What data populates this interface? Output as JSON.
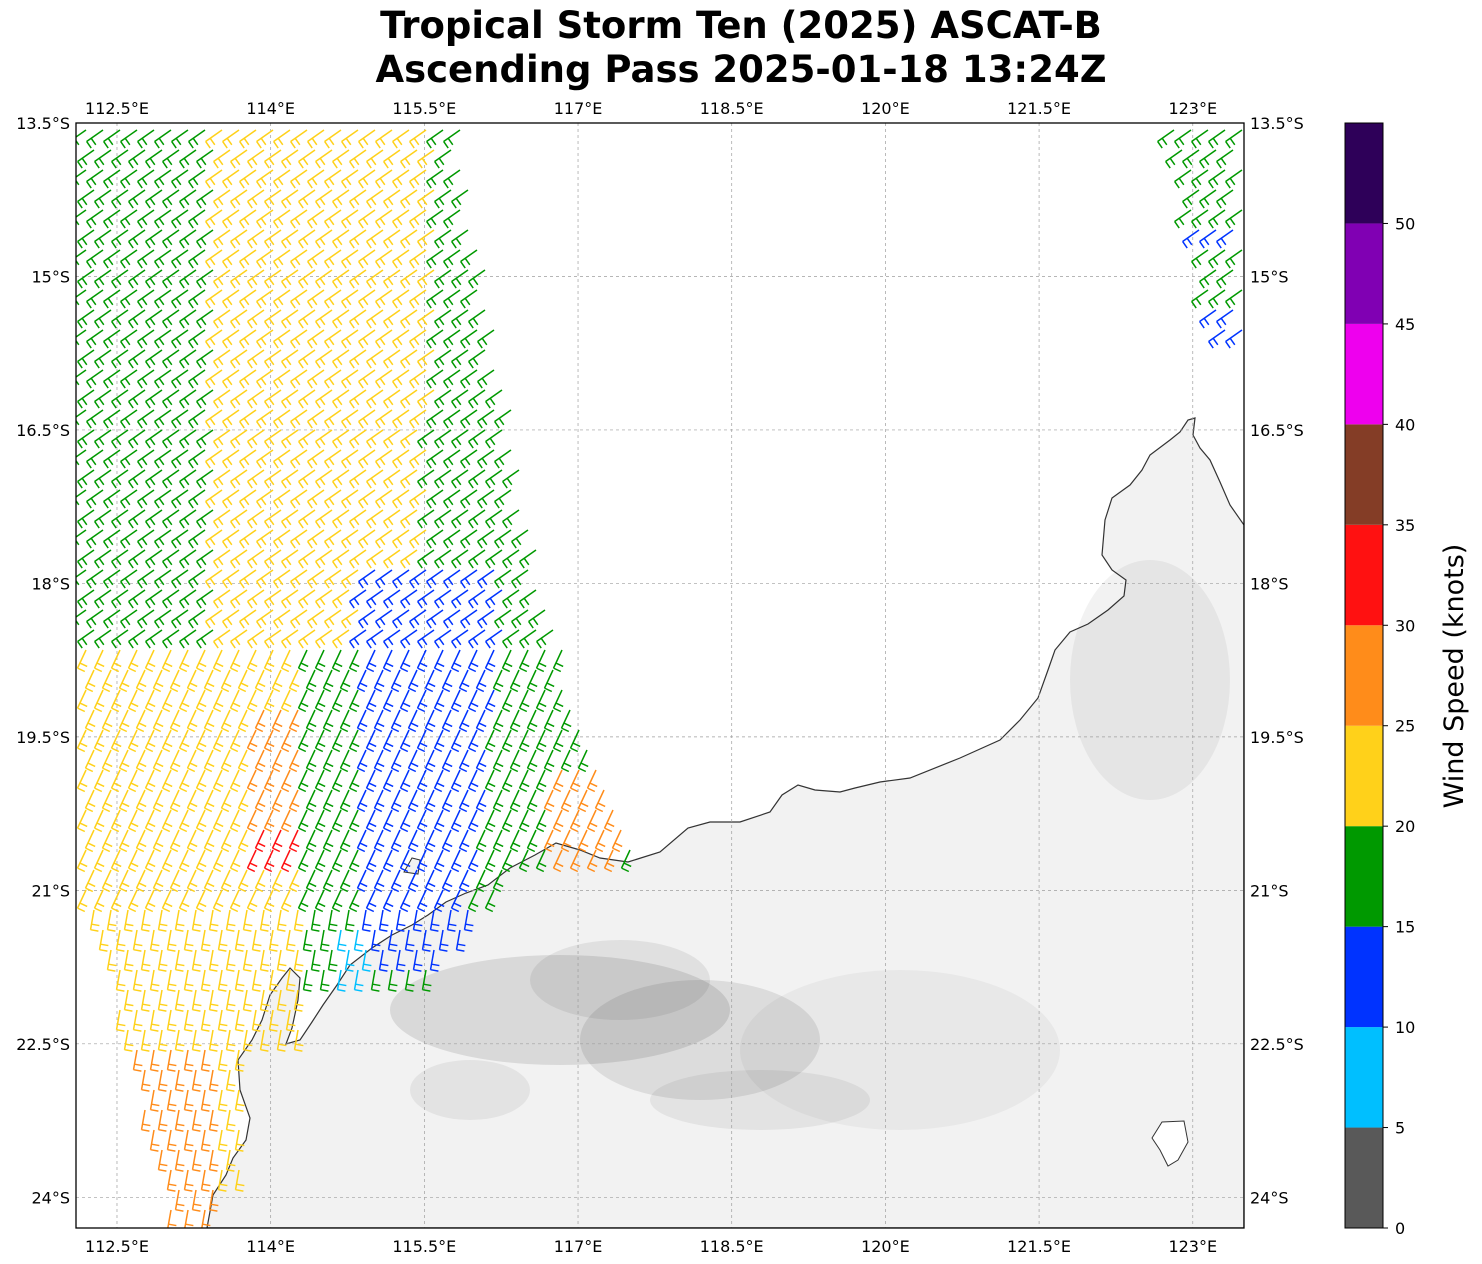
{
  "title": {
    "line1": "Tropical Storm Ten (2025) ASCAT-B",
    "line2": "Ascending Pass 2025-01-18 13:24Z"
  },
  "map": {
    "lon_range": [
      112.1,
      123.5
    ],
    "lat_range": [
      -24.3,
      -13.5
    ],
    "lon_ticks": [
      "112.5°E",
      "114°E",
      "115.5°E",
      "117°E",
      "118.5°E",
      "120°E",
      "121.5°E",
      "123°E"
    ],
    "lon_tick_values": [
      112.5,
      114.0,
      115.5,
      117.0,
      118.5,
      120.0,
      121.5,
      123.0
    ],
    "lat_ticks": [
      "13.5°S",
      "15°S",
      "16.5°S",
      "18°S",
      "19.5°S",
      "21°S",
      "22.5°S",
      "24°S"
    ],
    "lat_tick_values": [
      -13.5,
      -15.0,
      -16.5,
      -18.0,
      -19.5,
      -21.0,
      -22.5,
      -24.0
    ],
    "gridlines": true,
    "land_color": "#f2f2f2",
    "coast_color": "#333333"
  },
  "colorbar": {
    "label": "Wind Speed (knots)",
    "ticks": [
      "0",
      "5",
      "10",
      "15",
      "20",
      "25",
      "30",
      "35",
      "40",
      "45",
      "50"
    ],
    "bounds": [
      0,
      5,
      10,
      15,
      20,
      25,
      30,
      35,
      40,
      45,
      50,
      55
    ],
    "colors": [
      "#595959",
      "#00bfff",
      "#0033ff",
      "#009900",
      "#ffd11a",
      "#ff8c1a",
      "#ff1111",
      "#843d26",
      "#ee00ee",
      "#8000b3",
      "#2e0059"
    ]
  }
}
